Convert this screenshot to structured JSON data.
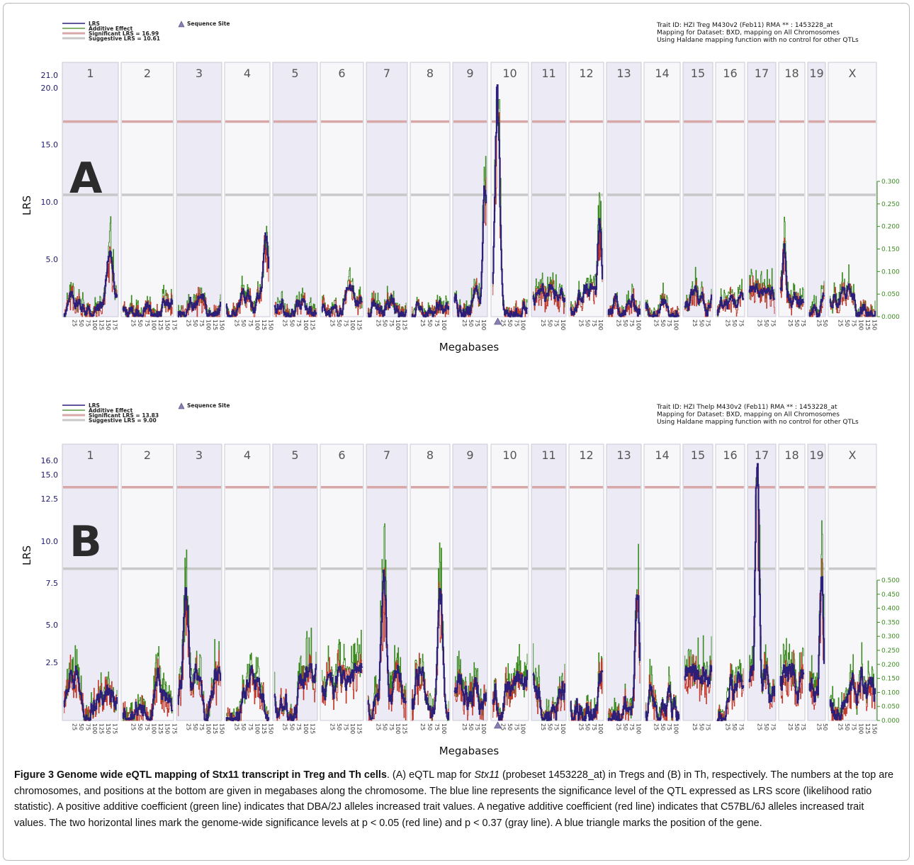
{
  "panels": [
    {
      "letter": "A",
      "legend": {
        "lrs": "LRS",
        "additive": "Additive Effect",
        "significant": "Significant LRS = 16.99",
        "suggestive": "Suggestive LRS = 10.61",
        "sequence_site": "Sequence Site"
      },
      "info": [
        "Trait ID: HZI Treg M430v2 (Feb11) RMA ** : 1453228_at",
        "Mapping for Dataset: BXD, mapping on All Chromosomes",
        "Using Haldane mapping function with no control for other QTLs"
      ],
      "ylabel": "LRS",
      "xlabel": "Megabases"
    },
    {
      "letter": "B",
      "legend": {
        "lrs": "LRS",
        "additive": "Additive Effect",
        "significant": "Significant LRS = 13.83",
        "suggestive": "Suggestive LRS = 9.00",
        "sequence_site": "Sequence Site"
      },
      "info": [
        "Trait ID: HZI Thelp M430v2 (Feb11) RMA ** : 1453228_at",
        "Mapping for Dataset: BXD, mapping on All Chromosomes",
        "Using Haldane mapping function with no control for other QTLs"
      ],
      "ylabel": "LRS",
      "xlabel": "Megabases"
    }
  ],
  "colors": {
    "lrs": "#2b1f7a",
    "additive_pos": "#3a8a1e",
    "additive_neg": "#c0392b",
    "significant": "#d8a8a8",
    "suggestive": "#c8c8c8",
    "chr_shade": "#ebeaf5",
    "chr_light": "#f7f7fa",
    "sequence_site": "#8a7fb0"
  },
  "chart_data": [
    {
      "type": "line",
      "panel": "A",
      "chromosomes": [
        "1",
        "2",
        "3",
        "4",
        "5",
        "6",
        "7",
        "8",
        "9",
        "10",
        "11",
        "12",
        "13",
        "14",
        "15",
        "16",
        "17",
        "18",
        "19",
        "X"
      ],
      "chromosome_lengths_mb": [
        197,
        182,
        160,
        156,
        152,
        150,
        145,
        130,
        125,
        130,
        122,
        121,
        120,
        125,
        104,
        98,
        95,
        91,
        61,
        167
      ],
      "y_ticks": [
        "5.0",
        "10.0",
        "15.0",
        "20.0",
        "21.0"
      ],
      "y_right_ticks": [
        "0.000",
        "0.050",
        "0.100",
        "0.150",
        "0.200",
        "0.250",
        "0.300"
      ],
      "ylim": [
        0,
        21.0
      ],
      "significant_lrs": 16.99,
      "suggestive_lrs": 10.61,
      "sequence_site": {
        "chromosome": "10",
        "mb": 20
      },
      "peaks": [
        {
          "chromosome": "1",
          "mb": 170,
          "lrs": 6.0
        },
        {
          "chromosome": "4",
          "mb": 145,
          "lrs": 7.5
        },
        {
          "chromosome": "9",
          "mb": 120,
          "lrs": 12.2
        },
        {
          "chromosome": "10",
          "mb": 18,
          "lrs": 20.6
        },
        {
          "chromosome": "12",
          "mb": 110,
          "lrs": 8.8
        },
        {
          "chromosome": "18",
          "mb": 15,
          "lrs": 6.6
        }
      ]
    },
    {
      "type": "line",
      "panel": "B",
      "chromosomes": [
        "1",
        "2",
        "3",
        "4",
        "5",
        "6",
        "7",
        "8",
        "9",
        "10",
        "11",
        "12",
        "13",
        "14",
        "15",
        "16",
        "17",
        "18",
        "19",
        "X"
      ],
      "chromosome_lengths_mb": [
        197,
        182,
        160,
        156,
        152,
        150,
        145,
        130,
        125,
        130,
        122,
        121,
        120,
        125,
        104,
        98,
        95,
        91,
        61,
        167
      ],
      "y_ticks": [
        "2.5",
        "5.0",
        "7.5",
        "10.0",
        "12.5",
        "15.0",
        "16.0"
      ],
      "y_right_ticks": [
        "0.000",
        "0.050",
        "0.100",
        "0.150",
        "0.200",
        "0.250",
        "0.300",
        "0.350",
        "0.400",
        "0.450",
        "0.500"
      ],
      "ylim": [
        0,
        16.0
      ],
      "significant_lrs": 13.83,
      "suggestive_lrs": 9.0,
      "sequence_site": {
        "chromosome": "10",
        "mb": 20
      },
      "peaks": [
        {
          "chromosome": "3",
          "mb": 30,
          "lrs": 8.1
        },
        {
          "chromosome": "7",
          "mb": 60,
          "lrs": 9.5
        },
        {
          "chromosome": "8",
          "mb": 100,
          "lrs": 8.3
        },
        {
          "chromosome": "13",
          "mb": 110,
          "lrs": 8.4
        },
        {
          "chromosome": "17",
          "mb": 30,
          "lrs": 16.0
        },
        {
          "chromosome": "19",
          "mb": 50,
          "lrs": 9.4
        }
      ]
    }
  ],
  "caption": {
    "title": "Figure 3 Genome wide eQTL mapping of Stx11 transcript in Treg and Th cells",
    "text_1": ". (A) eQTL map for ",
    "gene": "Stx11",
    "text_2": " (probeset 1453228_at) in Tregs and (B) in Th, respectively. The numbers at the top are chromosomes, and positions at the bottom are given in megabases along the chromosome. The blue line represents the significance level of the QTL expressed as LRS score (likelihood ratio statistic). A positive additive coefficient (green line) indicates that DBA/2J alleles increased trait values. A negative additive coefficient (red line) indicates that C57BL/6J alleles increased trait values. The two horizontal lines mark the genome-wide significance levels at p < 0.05 (red line) and p < 0.37 (gray line). A blue triangle marks the position of the gene."
  }
}
